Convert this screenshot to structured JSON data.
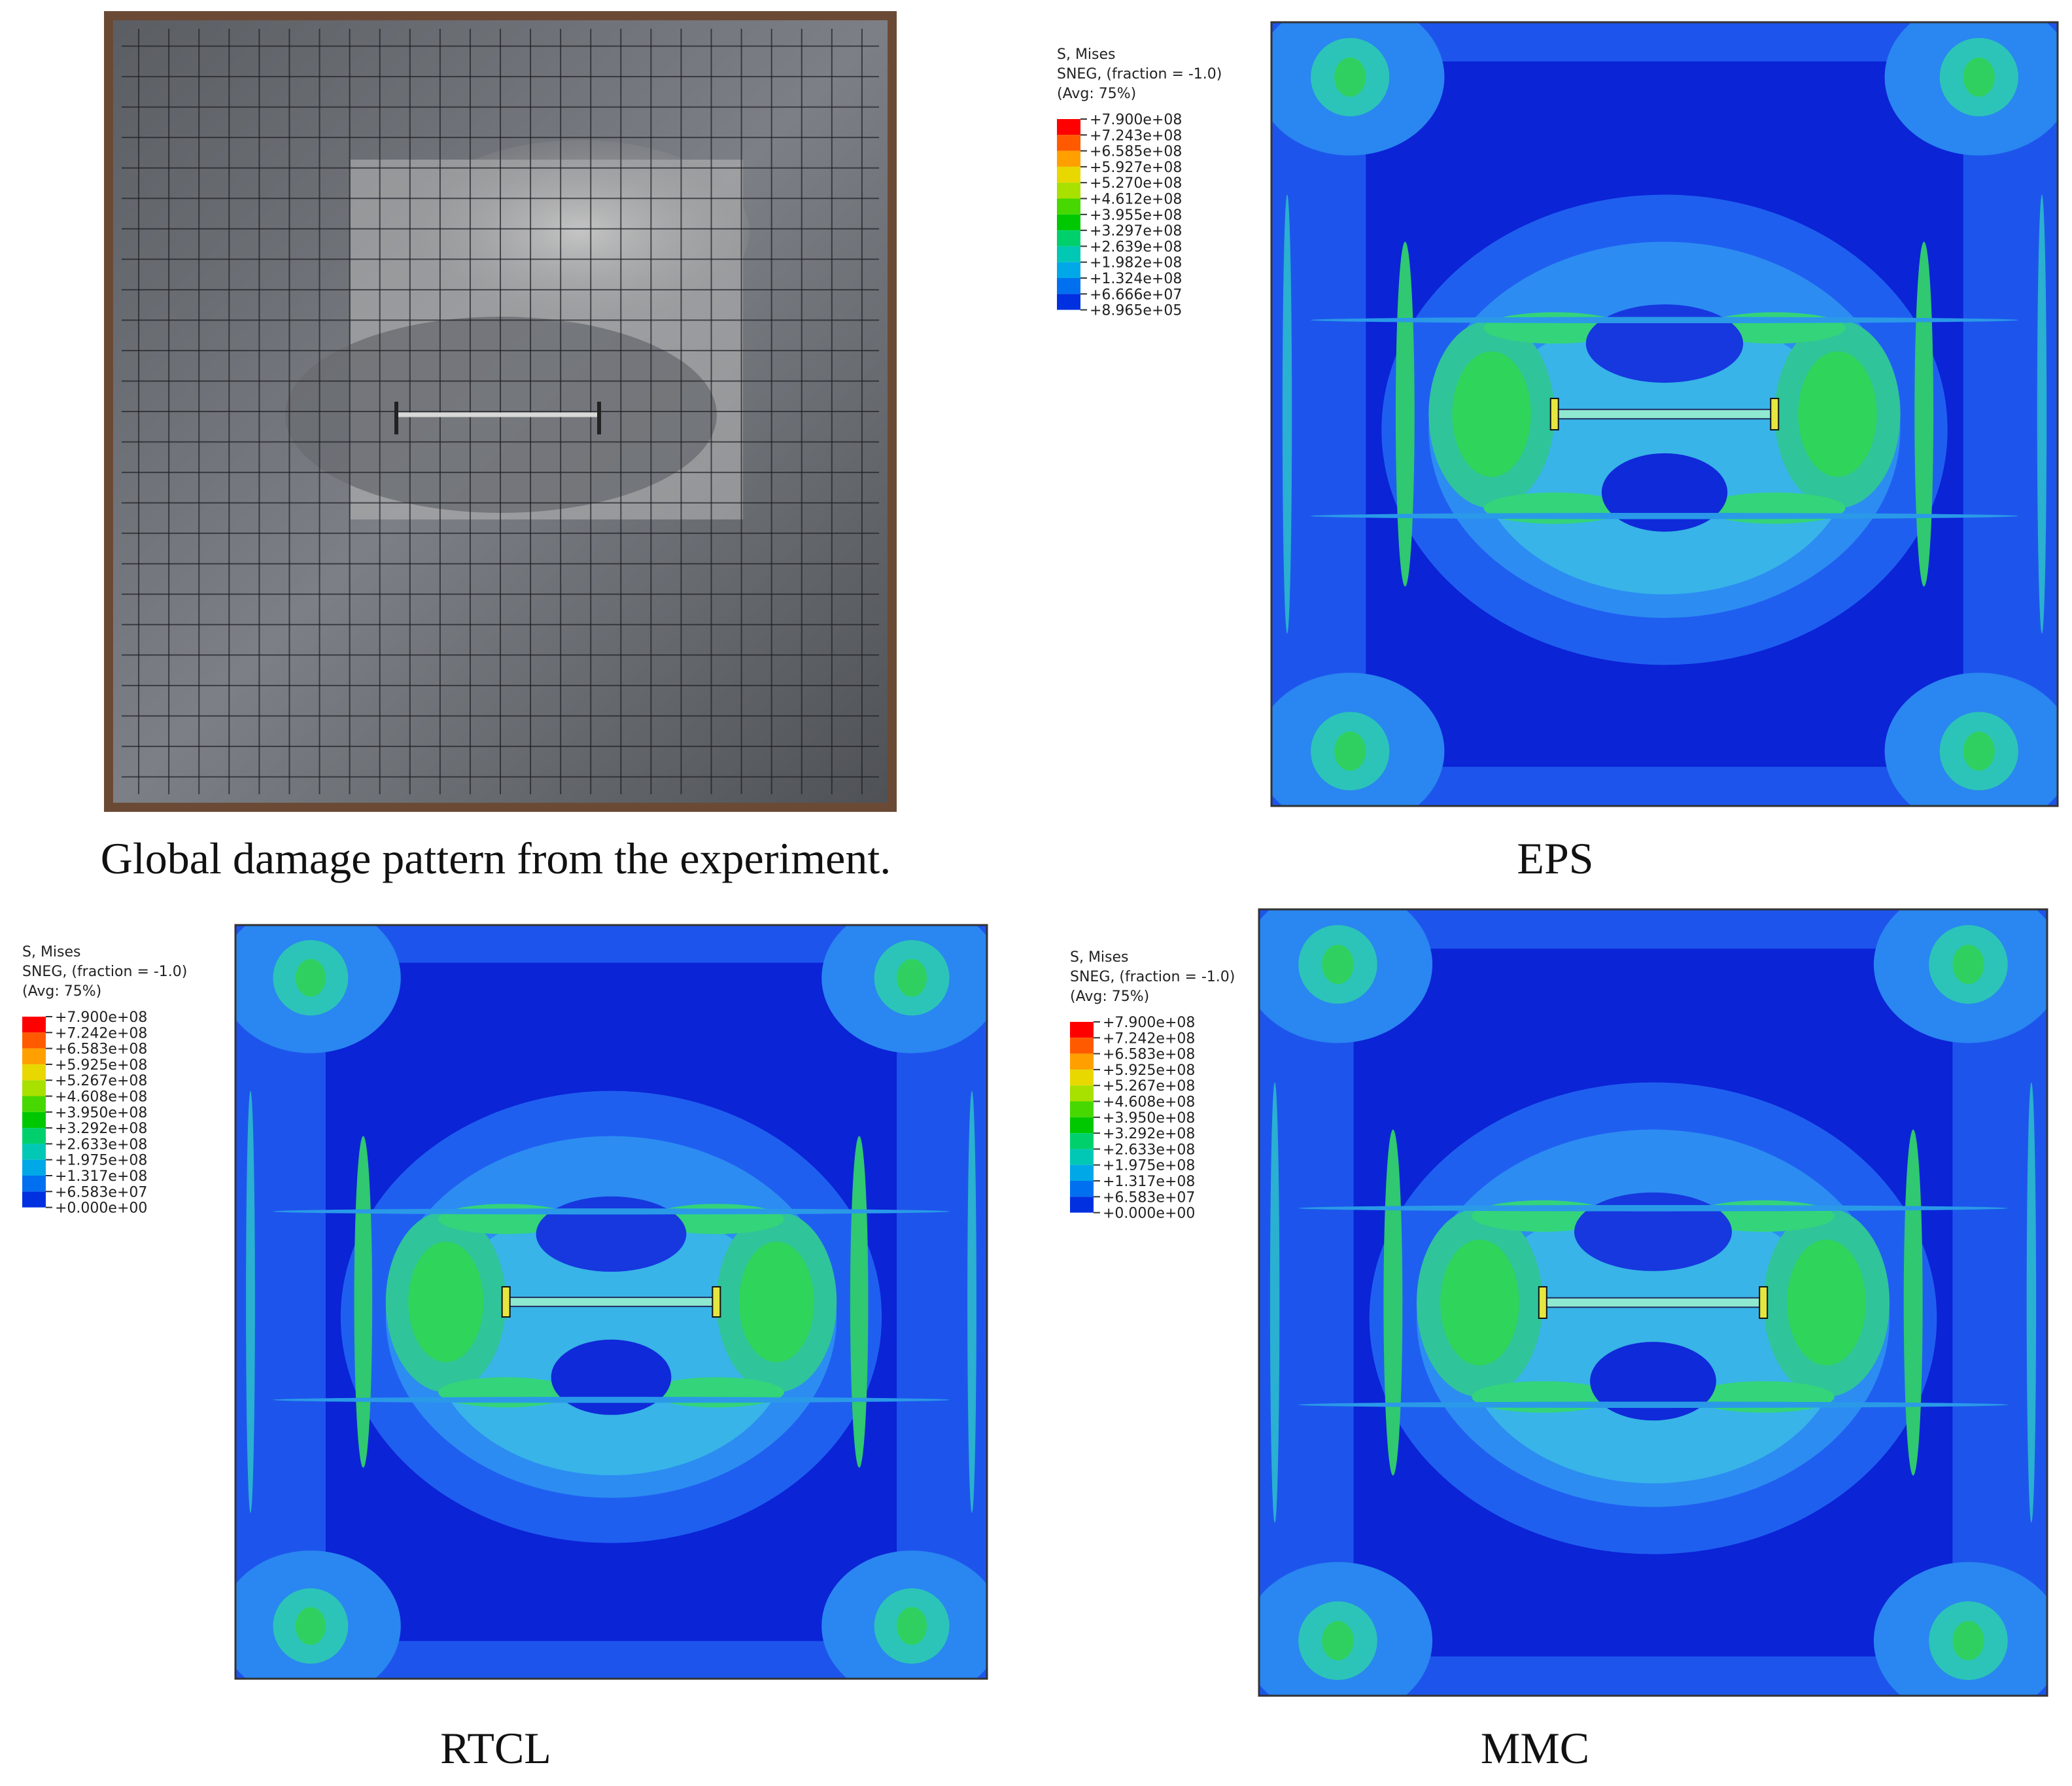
{
  "panels": [
    {
      "caption": "Global damage pattern from the experiment."
    },
    {
      "caption": "EPS",
      "legend": {
        "title": [
          "S, Mises",
          "SNEG, (fraction = -1.0)",
          "(Avg: 75%)"
        ],
        "labels": [
          "+7.900e+08",
          "+7.243e+08",
          "+6.585e+08",
          "+5.927e+08",
          "+5.270e+08",
          "+4.612e+08",
          "+3.955e+08",
          "+3.297e+08",
          "+2.639e+08",
          "+1.982e+08",
          "+1.324e+08",
          "+6.666e+07",
          "+8.965e+05"
        ]
      }
    },
    {
      "caption": "RTCL",
      "legend": {
        "title": [
          "S, Mises",
          "SNEG, (fraction = -1.0)",
          "(Avg: 75%)"
        ],
        "labels": [
          "+7.900e+08",
          "+7.242e+08",
          "+6.583e+08",
          "+5.925e+08",
          "+5.267e+08",
          "+4.608e+08",
          "+3.950e+08",
          "+3.292e+08",
          "+2.633e+08",
          "+1.975e+08",
          "+1.317e+08",
          "+6.583e+07",
          "+0.000e+00"
        ]
      }
    },
    {
      "caption": "MMC",
      "legend": {
        "title": [
          "S, Mises",
          "SNEG, (fraction = -1.0)",
          "(Avg: 75%)"
        ],
        "labels": [
          "+7.900e+08",
          "+7.242e+08",
          "+6.583e+08",
          "+5.925e+08",
          "+5.267e+08",
          "+4.608e+08",
          "+3.950e+08",
          "+3.292e+08",
          "+2.633e+08",
          "+1.975e+08",
          "+1.317e+08",
          "+6.583e+07",
          "+0.000e+00"
        ]
      }
    }
  ]
}
